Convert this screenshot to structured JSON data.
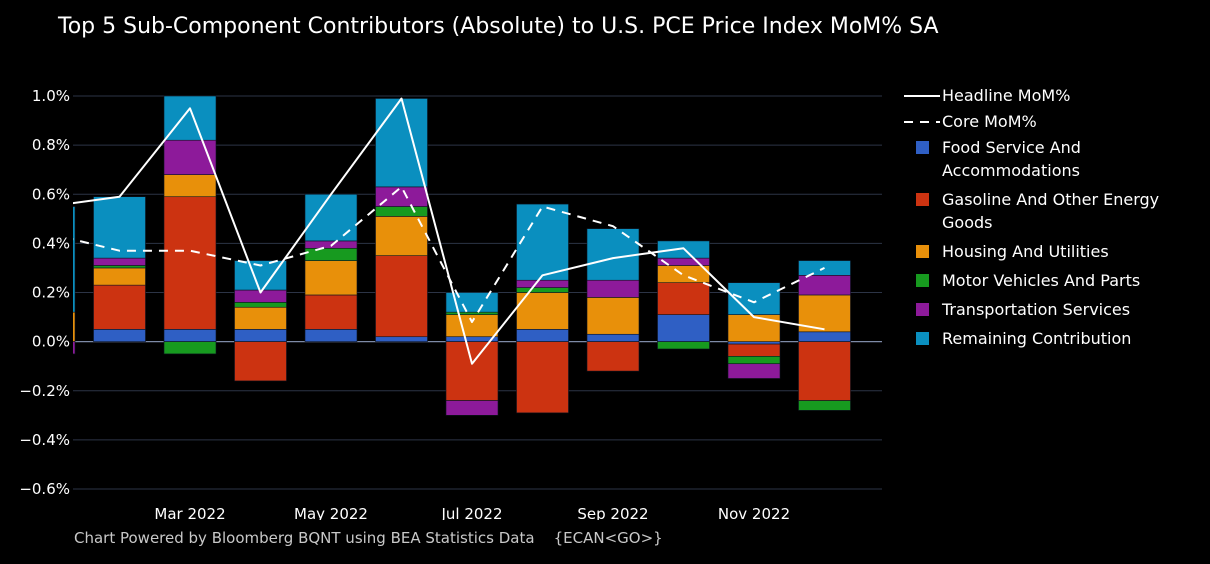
{
  "chart_data": {
    "type": "bar",
    "title": "Top 5 Sub-Component Contributors (Absolute) to U.S. PCE Price Index MoM% SA",
    "stacked": true,
    "x_months": [
      "2022-01",
      "2022-02",
      "2022-03",
      "2022-04",
      "2022-05",
      "2022-06",
      "2022-07",
      "2022-08",
      "2022-09",
      "2022-10",
      "2022-11",
      "2022-12"
    ],
    "x_tick_labels": [
      {
        "month": "2022-03",
        "label": "Mar 2022"
      },
      {
        "month": "2022-05",
        "label": "May 2022"
      },
      {
        "month": "2022-07",
        "label": "Jul 2022"
      },
      {
        "month": "2022-09",
        "label": "Sep 2022"
      },
      {
        "month": "2022-11",
        "label": "Nov 2022"
      }
    ],
    "ylim": [
      -0.6,
      1.0
    ],
    "y_ticks": [
      {
        "value": 1.0,
        "label": "1.0%"
      },
      {
        "value": 0.8,
        "label": "0.8%"
      },
      {
        "value": 0.6,
        "label": "0.6%"
      },
      {
        "value": 0.4,
        "label": "0.4%"
      },
      {
        "value": 0.2,
        "label": "0.2%"
      },
      {
        "value": 0.0,
        "label": "0.0%"
      },
      {
        "value": -0.2,
        "label": "−0.2%"
      },
      {
        "value": -0.4,
        "label": "−0.4%"
      },
      {
        "value": -0.6,
        "label": "−0.6%"
      }
    ],
    "grid": true,
    "legend_position": "right",
    "series": [
      {
        "name": "Food Service And Accommodations",
        "kind": "bar",
        "color": "#2f5fc4",
        "values": [
          0.0,
          0.05,
          0.05,
          0.05,
          0.05,
          0.02,
          0.02,
          0.05,
          0.03,
          0.11,
          -0.01,
          0.04
        ]
      },
      {
        "name": "Gasoline And Other Energy Goods",
        "kind": "bar",
        "color": "#cc3311",
        "values": [
          0.0,
          0.18,
          0.54,
          -0.16,
          0.14,
          0.33,
          -0.24,
          -0.29,
          -0.12,
          0.13,
          -0.05,
          -0.24
        ]
      },
      {
        "name": "Housing And Utilities",
        "kind": "bar",
        "color": "#e8900a",
        "values": [
          0.12,
          0.07,
          0.09,
          0.09,
          0.14,
          0.16,
          0.09,
          0.15,
          0.15,
          0.07,
          0.11,
          0.15
        ]
      },
      {
        "name": "Motor Vehicles And Parts",
        "kind": "bar",
        "color": "#179a1f",
        "values": [
          0.0,
          0.01,
          -0.05,
          0.02,
          0.05,
          0.04,
          0.01,
          0.02,
          0.0,
          -0.03,
          -0.03,
          -0.04
        ]
      },
      {
        "name": "Transportation Services",
        "kind": "bar",
        "color": "#8d1a9a",
        "values": [
          -0.05,
          0.03,
          0.14,
          0.05,
          0.03,
          0.08,
          -0.06,
          0.03,
          0.07,
          0.03,
          -0.06,
          0.08
        ]
      },
      {
        "name": "Remaining Contribution",
        "kind": "bar",
        "color": "#0a8fbf",
        "values": [
          0.43,
          0.25,
          0.18,
          0.12,
          0.19,
          0.36,
          0.08,
          0.31,
          0.21,
          0.07,
          0.13,
          0.06
        ]
      },
      {
        "name": "Headline MoM%",
        "kind": "line",
        "style": "solid",
        "color": "#ffffff",
        "values": [
          0.55,
          0.59,
          0.95,
          0.2,
          0.6,
          0.99,
          -0.09,
          0.27,
          0.34,
          0.38,
          0.1,
          0.05
        ]
      },
      {
        "name": "Core MoM%",
        "kind": "line",
        "style": "dashed",
        "color": "#ffffff",
        "values": [
          0.44,
          0.37,
          0.37,
          0.31,
          0.39,
          0.63,
          0.08,
          0.55,
          0.47,
          0.27,
          0.16,
          0.3
        ]
      }
    ]
  },
  "footer": {
    "text": "Chart Powered by Bloomberg BQNT using BEA Statistics Data",
    "code": "{ECAN<GO>}"
  }
}
